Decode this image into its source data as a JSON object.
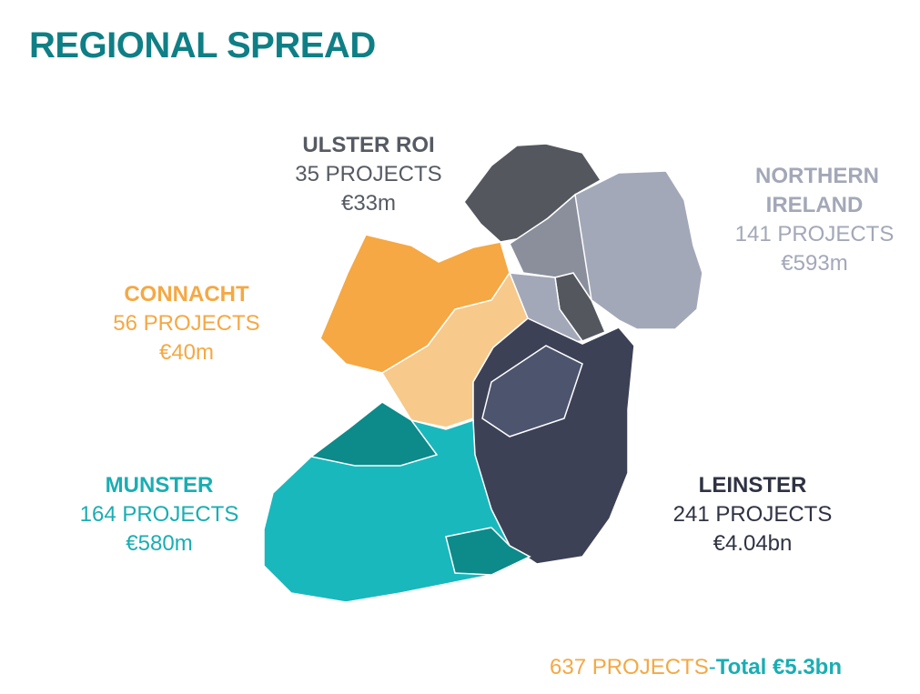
{
  "header": {
    "title": "REGIONAL SPREAD"
  },
  "regions": [
    {
      "name": "ULSTER ROI",
      "projects": "35 PROJECTS",
      "amount": "€33m"
    },
    {
      "name": "NORTHERN IRELAND",
      "projects": "141 PROJECTS",
      "amount": "€593m"
    },
    {
      "name": "CONNACHT",
      "projects": "56 PROJECTS",
      "amount": "€40m"
    },
    {
      "name": "MUNSTER",
      "projects": "164 PROJECTS",
      "amount": "€580m"
    },
    {
      "name": "LEINSTER",
      "projects": "241 PROJECTS",
      "amount": "€4.04bn"
    }
  ],
  "footer": {
    "projects": "637 PROJECTS",
    "separator": "-",
    "total": "Total €5.3bn"
  }
}
